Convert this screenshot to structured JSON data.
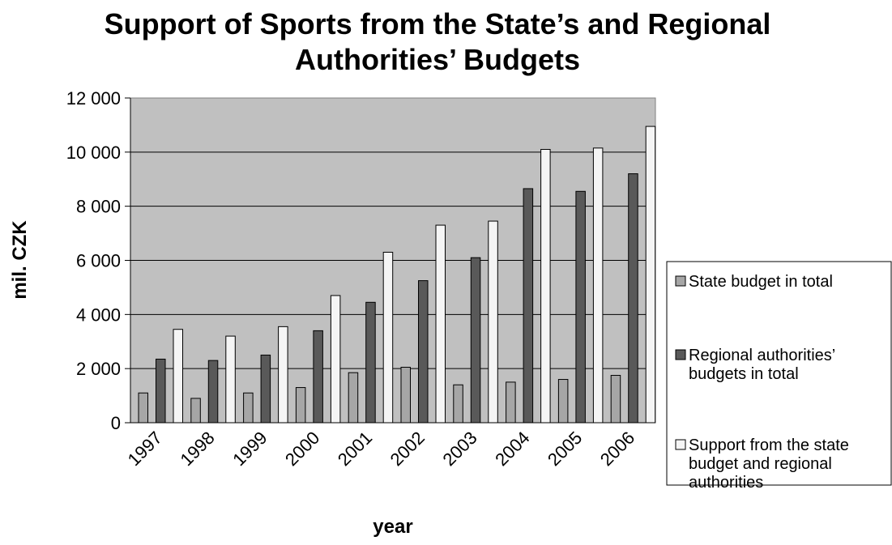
{
  "chart_data": {
    "type": "bar",
    "title_lines": [
      "Support of Sports from the State’s and Regional",
      "Authorities’ Budgets"
    ],
    "xlabel": "year",
    "ylabel": "mil. CZK",
    "categories": [
      "1997",
      "1998",
      "1999",
      "2000",
      "2001",
      "2002",
      "2003",
      "2004",
      "2005",
      "2006"
    ],
    "ylim": [
      0,
      12000
    ],
    "y_ticks": [
      0,
      2000,
      4000,
      6000,
      8000,
      10000,
      12000
    ],
    "y_tick_labels": [
      "0",
      "2 000",
      "4 000",
      "6 000",
      "8 000",
      "10 000",
      "12 000"
    ],
    "grid": true,
    "legend_position": "right",
    "series": [
      {
        "name": "State budget in total",
        "legend_lines": [
          "State budget in total"
        ],
        "color": "#a6a6a6",
        "values": [
          1100,
          900,
          1100,
          1300,
          1850,
          2050,
          1400,
          1500,
          1600,
          1750
        ]
      },
      {
        "name": "Regional authorities’ budgets in total",
        "legend_lines": [
          "Regional authorities’",
          "budgets in total"
        ],
        "color": "#595959",
        "values": [
          2350,
          2300,
          2500,
          3400,
          4450,
          5250,
          6100,
          8650,
          8550,
          9200
        ]
      },
      {
        "name": "Support from the state budget and regional authorities",
        "legend_lines": [
          "Support from the state",
          "budget and regional",
          "authorities"
        ],
        "color": "#f5f5f5",
        "values": [
          3450,
          3200,
          3550,
          4700,
          6300,
          7300,
          7450,
          10100,
          10150,
          10950
        ]
      }
    ],
    "plot_background": "#c0c0c0"
  }
}
